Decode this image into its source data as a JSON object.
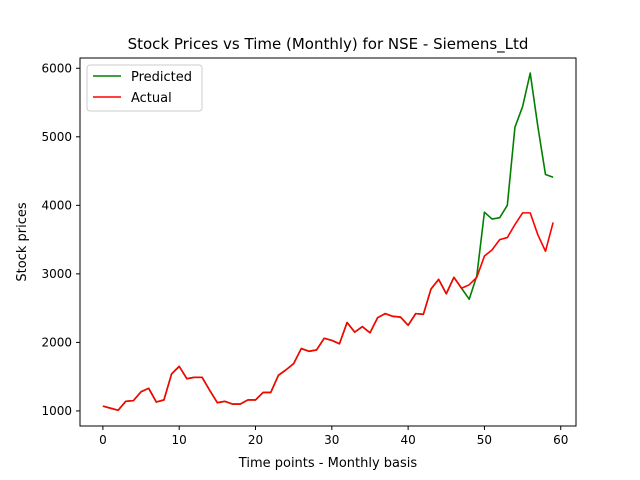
{
  "chart_data": {
    "type": "line",
    "title": "Stock Prices vs Time (Monthly) for NSE - Siemens_Ltd",
    "xlabel": "Time points - Monthly basis",
    "ylabel": "Stock prices",
    "xlim": [
      -3,
      62
    ],
    "ylim": [
      780,
      6150
    ],
    "xticks": [
      0,
      10,
      20,
      30,
      40,
      50,
      60
    ],
    "yticks": [
      1000,
      2000,
      3000,
      4000,
      5000,
      6000
    ],
    "grid": false,
    "legend_position": "top-left",
    "x": [
      0,
      1,
      2,
      3,
      4,
      5,
      6,
      7,
      8,
      9,
      10,
      11,
      12,
      13,
      14,
      15,
      16,
      17,
      18,
      19,
      20,
      21,
      22,
      23,
      24,
      25,
      26,
      27,
      28,
      29,
      30,
      31,
      32,
      33,
      34,
      35,
      36,
      37,
      38,
      39,
      40,
      41,
      42,
      43,
      44,
      45,
      46,
      47,
      48,
      49,
      50,
      51,
      52,
      53,
      54,
      55,
      56,
      57,
      58,
      59
    ],
    "series": [
      {
        "name": "Predicted",
        "color": "#008000",
        "values": [
          1070,
          1040,
          1010,
          1140,
          1150,
          1280,
          1330,
          1130,
          1160,
          1540,
          1650,
          1470,
          1490,
          1490,
          1300,
          1120,
          1140,
          1100,
          1100,
          1160,
          1160,
          1270,
          1270,
          1520,
          1600,
          1690,
          1910,
          1870,
          1890,
          2060,
          2030,
          1980,
          2290,
          2150,
          2230,
          2140,
          2360,
          2420,
          2380,
          2370,
          2250,
          2420,
          2410,
          2780,
          2920,
          2710,
          2950,
          2790,
          2630,
          2970,
          3900,
          3800,
          3820,
          4000,
          5140,
          5440,
          5930,
          5150,
          4450,
          4410
        ]
      },
      {
        "name": "Actual",
        "color": "#ff0000",
        "values": [
          1070,
          1040,
          1010,
          1140,
          1150,
          1280,
          1330,
          1130,
          1160,
          1540,
          1650,
          1470,
          1490,
          1490,
          1300,
          1120,
          1140,
          1100,
          1100,
          1160,
          1160,
          1270,
          1270,
          1520,
          1600,
          1690,
          1910,
          1870,
          1890,
          2060,
          2030,
          1980,
          2290,
          2150,
          2230,
          2140,
          2360,
          2420,
          2380,
          2370,
          2250,
          2420,
          2410,
          2780,
          2920,
          2710,
          2950,
          2790,
          2840,
          2950,
          3260,
          3350,
          3500,
          3530,
          3720,
          3890,
          3890,
          3570,
          3330,
          3750
        ]
      }
    ]
  }
}
